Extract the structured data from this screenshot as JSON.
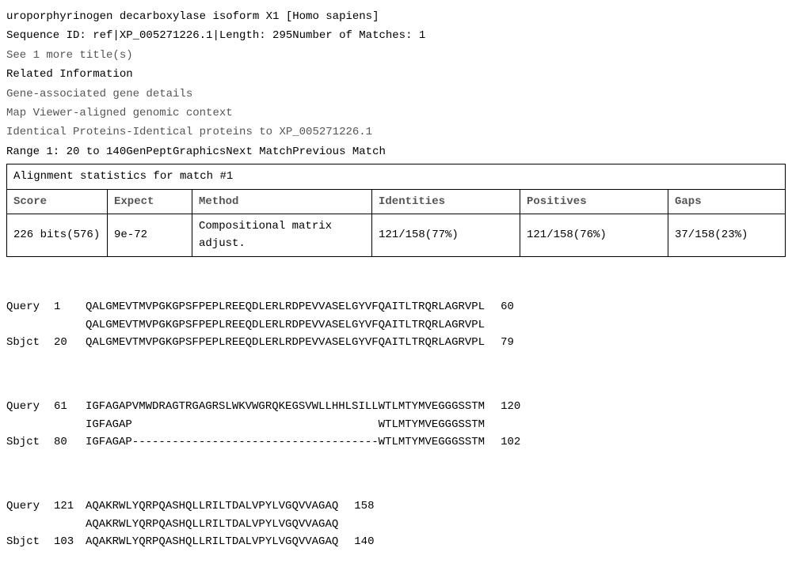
{
  "header": {
    "title": "uroporphyrinogen decarboxylase isoform X1 [Homo sapiens]",
    "seq_id_line": "Sequence ID: ref|XP_005271226.1|Length: 295Number of Matches: 1",
    "more_titles": "See 1 more title(s)",
    "related_info": "Related Information",
    "gene_details": "Gene-associated gene details",
    "map_viewer": "Map Viewer-aligned genomic context",
    "identical": "Identical Proteins-Identical proteins to XP_005271226.1",
    "range": "Range 1: 20 to 140GenPeptGraphicsNext MatchPrevious Match"
  },
  "stats_table": {
    "caption": "Alignment statistics for match #1",
    "headers": {
      "score": "Score",
      "expect": "Expect",
      "method": "Method",
      "identities": "Identities",
      "positives": "Positives",
      "gaps": "Gaps"
    },
    "values": {
      "score": "226 bits(576)",
      "expect": "9e-72",
      "method": "Compositional matrix adjust.",
      "identities": "121/158(77%)",
      "positives": "121/158(76%)",
      "gaps": "37/158(23%)"
    },
    "col_widths": {
      "score": "110px",
      "expect": "90px",
      "method": "210px",
      "identities": "170px",
      "positives": "170px",
      "gaps": "auto"
    }
  },
  "alignment": {
    "blocks": [
      {
        "query_label": "Query",
        "query_start": "1",
        "query_seq": "QALGMEVTMVPGKGPSFPEPLREEQDLERLRDPEVVASELGYVFQAITLTRQRLAGRVPL",
        "query_end": "60",
        "match_seq": "QALGMEVTMVPGKGPSFPEPLREEQDLERLRDPEVVASELGYVFQAITLTRQRLAGRVPL",
        "sbjct_label": "Sbjct",
        "sbjct_start": "20",
        "sbjct_seq": "QALGMEVTMVPGKGPSFPEPLREEQDLERLRDPEVVASELGYVFQAITLTRQRLAGRVPL",
        "sbjct_end": "79"
      },
      {
        "query_label": "Query",
        "query_start": "61",
        "query_seq": "IGFAGAPVMWDRAGTRGAGRSLWKVWGRQKEGSVWLLHHLSILLWTLMTYMVEGGGSSTM",
        "query_end": "120",
        "match_seq": "IGFAGAP                                     WTLMTYMVEGGGSSTM",
        "sbjct_label": "Sbjct",
        "sbjct_start": "80",
        "sbjct_seq": "IGFAGAP-------------------------------------WTLMTYMVEGGGSSTM",
        "sbjct_end": "102"
      },
      {
        "query_label": "Query",
        "query_start": "121",
        "query_seq": "AQAKRWLYQRPQASHQLLRILTDALVPYLVGQVVAGAQ",
        "query_end": "158",
        "match_seq": "AQAKRWLYQRPQASHQLLRILTDALVPYLVGQVVAGAQ",
        "sbjct_label": "Sbjct",
        "sbjct_start": "103",
        "sbjct_seq": "AQAKRWLYQRPQASHQLLRILTDALVPYLVGQVVAGAQ",
        "sbjct_end": "140"
      }
    ]
  }
}
